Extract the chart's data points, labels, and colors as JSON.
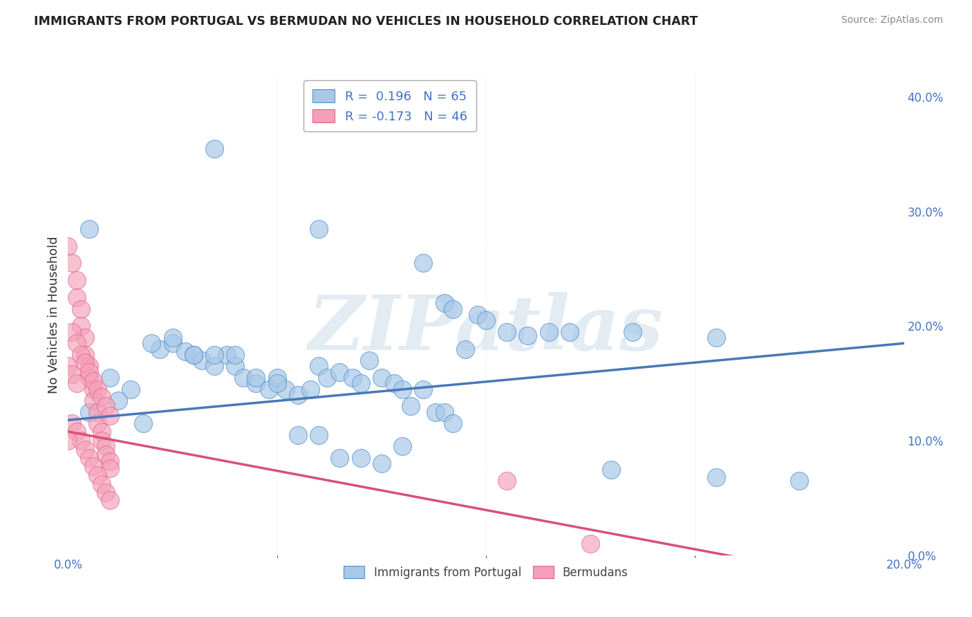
{
  "title": "IMMIGRANTS FROM PORTUGAL VS BERMUDAN NO VEHICLES IN HOUSEHOLD CORRELATION CHART",
  "source": "Source: ZipAtlas.com",
  "ylabel": "No Vehicles in Household",
  "legend_blue_r": "R =  0.196",
  "legend_blue_n": "N = 65",
  "legend_pink_r": "R = -0.173",
  "legend_pink_n": "N = 46",
  "blue_color": "#a8c8e8",
  "pink_color": "#f4a0b8",
  "blue_edge_color": "#5090c8",
  "pink_edge_color": "#e06090",
  "blue_line_color": "#4878b8",
  "pink_line_color": "#d8507a",
  "watermark": "ZIPatlas",
  "blue_scatter_x": [
    0.035,
    0.005,
    0.06,
    0.085,
    0.09,
    0.092,
    0.098,
    0.105,
    0.11,
    0.115,
    0.12,
    0.022,
    0.025,
    0.028,
    0.03,
    0.032,
    0.035,
    0.038,
    0.04,
    0.042,
    0.045,
    0.048,
    0.05,
    0.052,
    0.055,
    0.058,
    0.06,
    0.062,
    0.065,
    0.068,
    0.07,
    0.072,
    0.075,
    0.078,
    0.08,
    0.082,
    0.085,
    0.088,
    0.09,
    0.092,
    0.01,
    0.015,
    0.02,
    0.025,
    0.03,
    0.035,
    0.04,
    0.045,
    0.05,
    0.055,
    0.06,
    0.065,
    0.07,
    0.075,
    0.08,
    0.012,
    0.018,
    0.13,
    0.155,
    0.005,
    0.175,
    0.155,
    0.095,
    0.1,
    0.135
  ],
  "blue_scatter_y": [
    0.355,
    0.285,
    0.285,
    0.255,
    0.22,
    0.215,
    0.21,
    0.195,
    0.192,
    0.195,
    0.195,
    0.18,
    0.185,
    0.178,
    0.175,
    0.17,
    0.165,
    0.175,
    0.165,
    0.155,
    0.15,
    0.145,
    0.155,
    0.145,
    0.14,
    0.145,
    0.165,
    0.155,
    0.16,
    0.155,
    0.15,
    0.17,
    0.155,
    0.15,
    0.145,
    0.13,
    0.145,
    0.125,
    0.125,
    0.115,
    0.155,
    0.145,
    0.185,
    0.19,
    0.175,
    0.175,
    0.175,
    0.155,
    0.15,
    0.105,
    0.105,
    0.085,
    0.085,
    0.08,
    0.095,
    0.135,
    0.115,
    0.075,
    0.068,
    0.125,
    0.065,
    0.19,
    0.18,
    0.205,
    0.195
  ],
  "pink_scatter_x": [
    0.0,
    0.001,
    0.002,
    0.002,
    0.003,
    0.003,
    0.004,
    0.004,
    0.005,
    0.005,
    0.006,
    0.006,
    0.007,
    0.007,
    0.008,
    0.008,
    0.009,
    0.009,
    0.01,
    0.01,
    0.001,
    0.002,
    0.003,
    0.004,
    0.005,
    0.006,
    0.007,
    0.008,
    0.009,
    0.01,
    0.001,
    0.002,
    0.003,
    0.004,
    0.005,
    0.006,
    0.007,
    0.008,
    0.009,
    0.01,
    0.0,
    0.001,
    0.002,
    0.105,
    0.125,
    0.0
  ],
  "pink_scatter_y": [
    0.27,
    0.255,
    0.24,
    0.225,
    0.215,
    0.2,
    0.19,
    0.175,
    0.165,
    0.155,
    0.145,
    0.135,
    0.125,
    0.115,
    0.108,
    0.1,
    0.095,
    0.088,
    0.082,
    0.076,
    0.195,
    0.185,
    0.175,
    0.168,
    0.16,
    0.152,
    0.145,
    0.138,
    0.13,
    0.122,
    0.115,
    0.108,
    0.1,
    0.092,
    0.085,
    0.078,
    0.07,
    0.062,
    0.055,
    0.048,
    0.165,
    0.158,
    0.15,
    0.065,
    0.01,
    0.1
  ],
  "xlim": [
    0.0,
    0.2
  ],
  "ylim": [
    0.0,
    0.42
  ],
  "blue_trend_x": [
    0.0,
    0.2
  ],
  "blue_trend_y": [
    0.118,
    0.185
  ],
  "pink_trend_x": [
    0.0,
    0.165
  ],
  "pink_trend_y": [
    0.108,
    -0.005
  ],
  "right_yticks": [
    0.0,
    0.1,
    0.2,
    0.3,
    0.4
  ],
  "right_yticklabels": [
    "0.0%",
    "10.0%",
    "20.0%",
    "30.0%",
    "40.0%"
  ],
  "background_color": "#ffffff",
  "grid_color": "#cccccc"
}
